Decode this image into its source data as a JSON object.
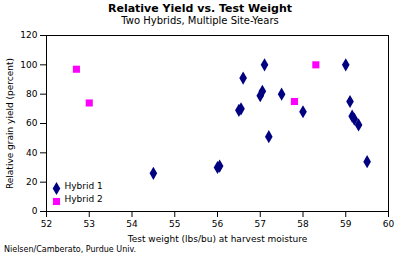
{
  "chart_data": {
    "type": "scatter",
    "title": "Relative Yield vs. Test Weight",
    "subtitle": "Two Hybrids, Multiple Site-Years",
    "xlabel": "Test weight (lbs/bu) at harvest moisture",
    "ylabel": "Relative grain yield (percent)",
    "annotations": [
      "Nielsen/Camberato, Purdue Univ."
    ],
    "xlim": [
      52,
      60
    ],
    "ylim": [
      0,
      120
    ],
    "xticks": [
      52,
      53,
      54,
      55,
      56,
      57,
      58,
      59,
      60
    ],
    "yticks": [
      0,
      20,
      40,
      60,
      80,
      100,
      120
    ],
    "grid": false,
    "legend": "lower left",
    "series": [
      {
        "name": "Hybrid 1",
        "color": "#000080",
        "marker": "diamond",
        "x": [
          54.5,
          56.0,
          56.05,
          56.5,
          56.6,
          56.55,
          57.0,
          57.05,
          57.1,
          57.2,
          57.5,
          58.0,
          59.0,
          59.1,
          59.15,
          59.2,
          59.3,
          59.5
        ],
        "values": [
          26,
          30,
          31,
          69,
          91,
          70,
          79,
          82,
          100,
          51,
          80,
          68,
          100,
          75,
          65,
          63,
          59,
          34
        ]
      },
      {
        "name": "Hybrid 2",
        "color": "#FF00FF",
        "marker": "square",
        "x": [
          52.7,
          53.0,
          57.8,
          58.3
        ],
        "values": [
          97,
          74,
          75,
          100
        ]
      }
    ]
  }
}
